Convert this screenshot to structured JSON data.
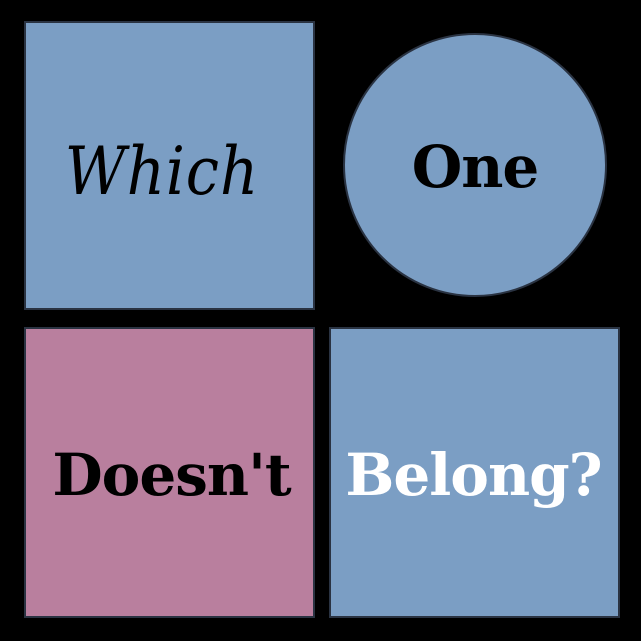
{
  "puzzle": {
    "tiles": [
      {
        "id": "tile-which",
        "shape": "square",
        "word": "Which",
        "fill": "#7b9ec4",
        "text_color": "#000000",
        "lettering": "script-italic"
      },
      {
        "id": "tile-one",
        "shape": "circle",
        "word": "One",
        "fill": "#7b9ec4",
        "text_color": "#000000",
        "lettering": "bold"
      },
      {
        "id": "tile-doesnt",
        "shape": "square",
        "word": "Doesn't",
        "fill": "#b97f9e",
        "text_color": "#000000",
        "lettering": "bold"
      },
      {
        "id": "tile-belong",
        "shape": "square",
        "word": "Belong?",
        "fill": "#7b9ec4",
        "text_color": "#ffffff",
        "lettering": "bold"
      }
    ]
  },
  "colors": {
    "background": "#000000",
    "blue_fill": "#7b9ec4",
    "pink_fill": "#b97f9e",
    "outline": "#2a3342"
  }
}
